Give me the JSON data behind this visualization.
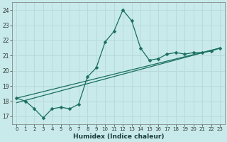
{
  "xlabel": "Humidex (Indice chaleur)",
  "bg_color": "#c8eaea",
  "grid_color": "#b8dada",
  "line_color": "#1a6e60",
  "xlim": [
    -0.5,
    23.5
  ],
  "ylim": [
    16.5,
    24.5
  ],
  "yticks": [
    17,
    18,
    19,
    20,
    21,
    22,
    23,
    24
  ],
  "xticks": [
    0,
    1,
    2,
    3,
    4,
    5,
    6,
    7,
    8,
    9,
    10,
    11,
    12,
    13,
    14,
    15,
    16,
    17,
    18,
    19,
    20,
    21,
    22,
    23
  ],
  "line1_x": [
    0,
    1,
    2,
    3,
    4,
    5,
    6,
    7,
    8,
    9,
    10,
    11,
    12,
    13,
    14,
    15,
    16,
    17,
    18,
    19,
    20,
    21,
    22,
    23
  ],
  "line1_y": [
    18.2,
    18.0,
    17.5,
    16.9,
    17.5,
    17.6,
    17.5,
    17.8,
    19.6,
    20.2,
    21.9,
    22.6,
    24.0,
    23.3,
    21.5,
    20.7,
    20.8,
    21.1,
    21.2,
    21.1,
    21.2,
    21.2,
    21.3,
    21.5
  ],
  "line2_x": [
    0,
    23
  ],
  "line2_y": [
    17.9,
    21.5
  ],
  "line3_x": [
    0,
    23
  ],
  "line3_y": [
    18.2,
    21.5
  ]
}
